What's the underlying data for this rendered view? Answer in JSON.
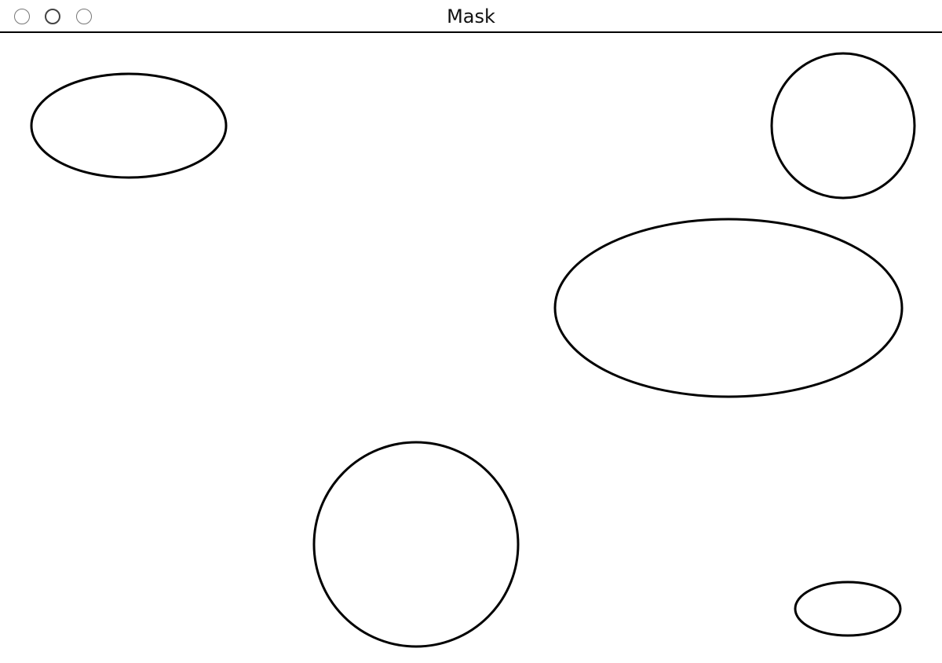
{
  "window": {
    "title": "Mask",
    "buttons": [
      "close",
      "minimize",
      "zoom"
    ]
  },
  "canvas": {
    "background": "#ffffff",
    "stroke_color": "#000000",
    "shapes": [
      {
        "name": "ellipse-top-left",
        "kind": "ellipse"
      },
      {
        "name": "circle-top-right",
        "kind": "circle"
      },
      {
        "name": "ellipse-middle-right",
        "kind": "ellipse"
      },
      {
        "name": "circle-bottom-center",
        "kind": "circle"
      },
      {
        "name": "ellipse-bottom-right",
        "kind": "ellipse"
      }
    ]
  }
}
